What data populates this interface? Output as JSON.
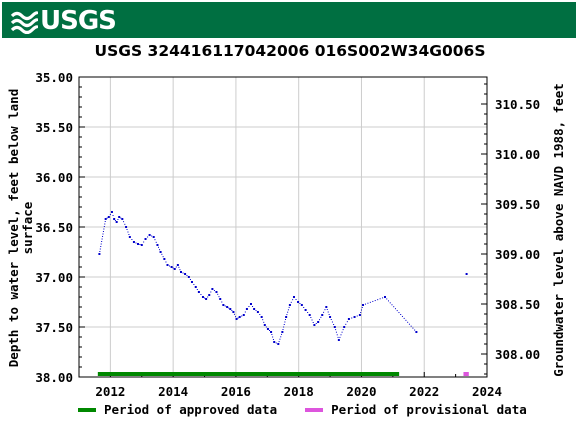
{
  "header": {
    "logo_text": "USGS"
  },
  "chart_data": {
    "type": "scatter",
    "title": "USGS 324416117042006 016S002W34G006S",
    "ylabel_left": "Depth to water level, feet below land surface",
    "ylabel_left_lines": [
      "Depth to water level, feet below land",
      "surface"
    ],
    "ylabel_right": "Groundwater level above NAVD 1988, feet",
    "xlim": [
      2011.0,
      2024.0
    ],
    "ylim_left": [
      35.0,
      38.0
    ],
    "ylim_right": [
      307.77,
      310.77
    ],
    "x_ticks": [
      2012,
      2014,
      2016,
      2018,
      2020,
      2022,
      2024
    ],
    "y_ticks_left": [
      "35.00",
      "35.50",
      "36.00",
      "36.50",
      "37.00",
      "37.50",
      "38.00"
    ],
    "y_ticks_right": [
      "308.00",
      "308.50",
      "309.00",
      "309.50",
      "310.00",
      "310.50"
    ],
    "y_ticks_right_values": [
      308.0,
      308.5,
      309.0,
      309.5,
      310.0,
      310.5
    ],
    "grid": true,
    "series": [
      {
        "name": "approved",
        "color": "#0000cc",
        "points": [
          [
            2011.65,
            36.77
          ],
          [
            2011.85,
            36.42
          ],
          [
            2011.95,
            36.4
          ],
          [
            2012.05,
            36.35
          ],
          [
            2012.12,
            36.42
          ],
          [
            2012.2,
            36.45
          ],
          [
            2012.28,
            36.4
          ],
          [
            2012.38,
            36.42
          ],
          [
            2012.5,
            36.5
          ],
          [
            2012.62,
            36.6
          ],
          [
            2012.75,
            36.65
          ],
          [
            2012.88,
            36.67
          ],
          [
            2013.0,
            36.68
          ],
          [
            2013.12,
            36.62
          ],
          [
            2013.25,
            36.58
          ],
          [
            2013.38,
            36.6
          ],
          [
            2013.5,
            36.68
          ],
          [
            2013.6,
            36.75
          ],
          [
            2013.72,
            36.82
          ],
          [
            2013.82,
            36.88
          ],
          [
            2013.95,
            36.9
          ],
          [
            2014.05,
            36.92
          ],
          [
            2014.15,
            36.88
          ],
          [
            2014.25,
            36.95
          ],
          [
            2014.38,
            36.97
          ],
          [
            2014.5,
            37.0
          ],
          [
            2014.6,
            37.05
          ],
          [
            2014.72,
            37.1
          ],
          [
            2014.82,
            37.15
          ],
          [
            2014.95,
            37.2
          ],
          [
            2015.05,
            37.22
          ],
          [
            2015.15,
            37.18
          ],
          [
            2015.25,
            37.12
          ],
          [
            2015.38,
            37.15
          ],
          [
            2015.5,
            37.22
          ],
          [
            2015.6,
            37.28
          ],
          [
            2015.72,
            37.3
          ],
          [
            2015.82,
            37.32
          ],
          [
            2015.92,
            37.35
          ],
          [
            2016.02,
            37.42
          ],
          [
            2016.12,
            37.4
          ],
          [
            2016.25,
            37.38
          ],
          [
            2016.35,
            37.32
          ],
          [
            2016.48,
            37.27
          ],
          [
            2016.58,
            37.32
          ],
          [
            2016.7,
            37.35
          ],
          [
            2016.82,
            37.4
          ],
          [
            2016.92,
            37.48
          ],
          [
            2017.02,
            37.52
          ],
          [
            2017.12,
            37.55
          ],
          [
            2017.22,
            37.65
          ],
          [
            2017.35,
            37.67
          ],
          [
            2017.48,
            37.55
          ],
          [
            2017.6,
            37.4
          ],
          [
            2017.72,
            37.28
          ],
          [
            2017.85,
            37.2
          ],
          [
            2017.98,
            37.25
          ],
          [
            2018.1,
            37.28
          ],
          [
            2018.22,
            37.33
          ],
          [
            2018.35,
            37.38
          ],
          [
            2018.5,
            37.48
          ],
          [
            2018.62,
            37.45
          ],
          [
            2018.75,
            37.38
          ],
          [
            2018.88,
            37.3
          ],
          [
            2019.0,
            37.4
          ],
          [
            2019.15,
            37.5
          ],
          [
            2019.28,
            37.63
          ],
          [
            2019.45,
            37.5
          ],
          [
            2019.6,
            37.42
          ],
          [
            2019.78,
            37.4
          ],
          [
            2019.95,
            37.38
          ],
          [
            2020.05,
            37.28
          ],
          [
            2020.75,
            37.2
          ],
          [
            2021.75,
            37.55
          ]
        ]
      },
      {
        "name": "provisional",
        "color": "#0000cc",
        "points": [
          [
            2023.35,
            36.97
          ]
        ]
      }
    ],
    "legend": [
      {
        "label": "Period of approved data",
        "color": "#008800"
      },
      {
        "label": "Period of provisional data",
        "color": "#dd55dd"
      }
    ],
    "periods": [
      {
        "type": "approved",
        "start": 2011.6,
        "end": 2021.2,
        "color": "#008800"
      },
      {
        "type": "provisional",
        "start": 2023.25,
        "end": 2023.42,
        "color": "#dd55dd"
      }
    ]
  }
}
